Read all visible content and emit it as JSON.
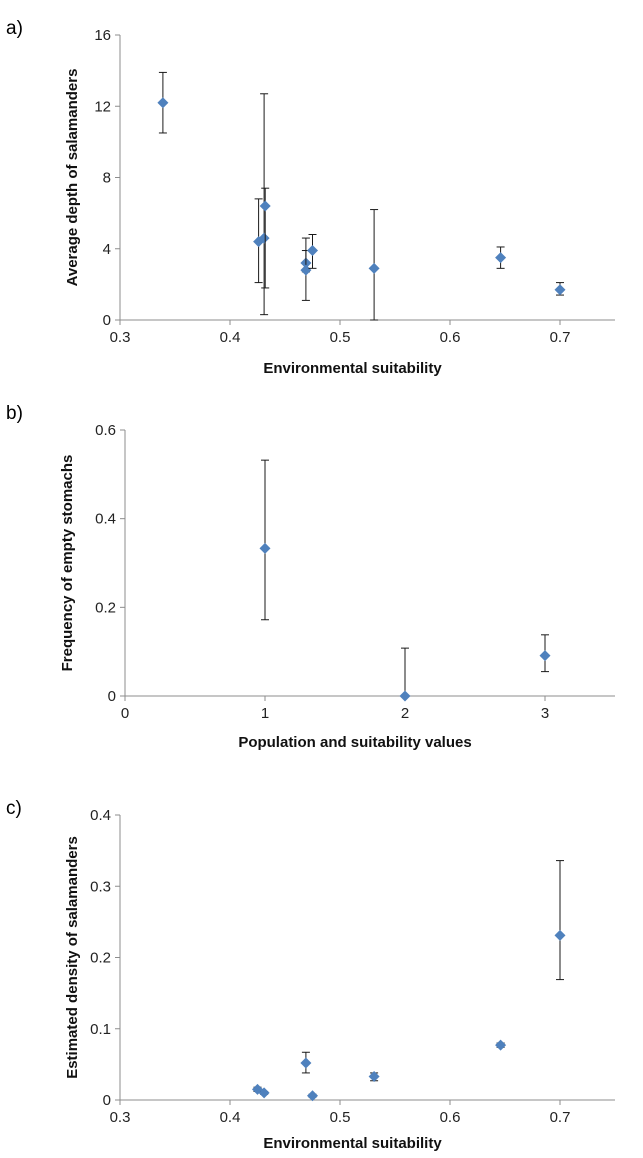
{
  "panels": [
    {
      "letter": "a)"
    },
    {
      "letter": "b)"
    },
    {
      "letter": "c)"
    }
  ],
  "chart_data": [
    {
      "type": "scatter",
      "panel": "a)",
      "xlabel": "Environmental suitability",
      "ylabel": "Average depth of salamanders",
      "xlim": [
        0.3,
        0.75
      ],
      "ylim": [
        0,
        16
      ],
      "xticks": [
        "0.3",
        "0.4",
        "0.5",
        "0.6",
        "0.7"
      ],
      "xtick_values": [
        0.3,
        0.4,
        0.5,
        0.6,
        0.7
      ],
      "yticks": [
        "0",
        "4",
        "8",
        "12",
        "16"
      ],
      "ytick_values": [
        0,
        4,
        8,
        12,
        16
      ],
      "marker_color": "#4f81bd",
      "grid": false,
      "points": [
        {
          "x": 0.339,
          "y": 12.2,
          "err_low": 10.5,
          "err_high": 13.9
        },
        {
          "x": 0.426,
          "y": 4.4,
          "err_low": 2.1,
          "err_high": 6.8
        },
        {
          "x": 0.431,
          "y": 4.6,
          "err_low": 0.3,
          "err_high": 12.7
        },
        {
          "x": 0.432,
          "y": 6.4,
          "err_low": 1.8,
          "err_high": 7.4
        },
        {
          "x": 0.469,
          "y": 3.2,
          "err_low": 2.7,
          "err_high": 4.6
        },
        {
          "x": 0.469,
          "y": 2.8,
          "err_low": 1.1,
          "err_high": 3.9
        },
        {
          "x": 0.475,
          "y": 3.9,
          "err_low": 2.9,
          "err_high": 4.8
        },
        {
          "x": 0.531,
          "y": 2.9,
          "err_low": 0.0,
          "err_high": 6.2
        },
        {
          "x": 0.646,
          "y": 3.5,
          "err_low": 2.9,
          "err_high": 4.1
        },
        {
          "x": 0.7,
          "y": 1.7,
          "err_low": 1.4,
          "err_high": 2.1
        }
      ]
    },
    {
      "type": "scatter",
      "panel": "b)",
      "xlabel": "Population and suitability values",
      "ylabel": "Frequency of empty stomachs",
      "xlim": [
        0,
        3.5
      ],
      "ylim": [
        0,
        0.6
      ],
      "xticks": [
        "0",
        "1",
        "2",
        "3"
      ],
      "xtick_values": [
        0,
        1,
        2,
        3
      ],
      "yticks": [
        "0",
        "0.2",
        "0.4",
        "0.6"
      ],
      "ytick_values": [
        0,
        0.2,
        0.4,
        0.6
      ],
      "marker_color": "#4f81bd",
      "grid": false,
      "points": [
        {
          "x": 1,
          "y": 0.333,
          "err_low": 0.172,
          "err_high": 0.532
        },
        {
          "x": 2,
          "y": 0.0,
          "err_low": 0.0,
          "err_high": 0.108
        },
        {
          "x": 3,
          "y": 0.091,
          "err_low": 0.055,
          "err_high": 0.138
        }
      ]
    },
    {
      "type": "scatter",
      "panel": "c)",
      "xlabel": "Environmental suitability",
      "ylabel": "Estimated density of salamanders",
      "xlim": [
        0.3,
        0.75
      ],
      "ylim": [
        0,
        0.4
      ],
      "xticks": [
        "0.3",
        "0.4",
        "0.5",
        "0.6",
        "0.7"
      ],
      "xtick_values": [
        0.3,
        0.4,
        0.5,
        0.6,
        0.7
      ],
      "yticks": [
        "0",
        "0.1",
        "0.2",
        "0.3",
        "0.4"
      ],
      "ytick_values": [
        0,
        0.1,
        0.2,
        0.3,
        0.4
      ],
      "marker_color": "#4f81bd",
      "grid": false,
      "points": [
        {
          "x": 0.425,
          "y": 0.015,
          "err_low": 0.012,
          "err_high": 0.018
        },
        {
          "x": 0.431,
          "y": 0.01,
          "err_low": 0.008,
          "err_high": 0.012
        },
        {
          "x": 0.469,
          "y": 0.052,
          "err_low": 0.038,
          "err_high": 0.067
        },
        {
          "x": 0.475,
          "y": 0.006,
          "err_low": 0.004,
          "err_high": 0.008
        },
        {
          "x": 0.531,
          "y": 0.033,
          "err_low": 0.027,
          "err_high": 0.038
        },
        {
          "x": 0.646,
          "y": 0.077,
          "err_low": 0.074,
          "err_high": 0.08
        },
        {
          "x": 0.7,
          "y": 0.231,
          "err_low": 0.169,
          "err_high": 0.336
        }
      ]
    }
  ]
}
